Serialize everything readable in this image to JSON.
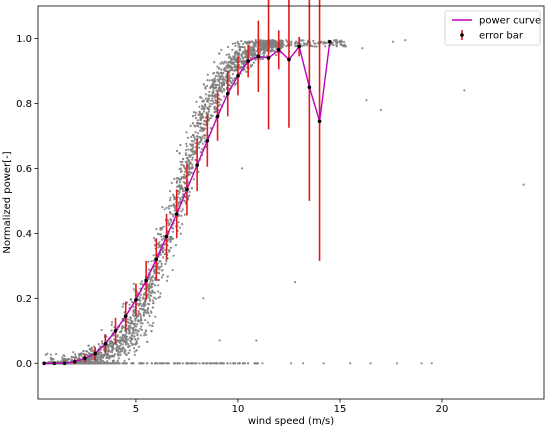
{
  "chart_data": {
    "type": "scatter",
    "title": "",
    "xlabel": "wind speed (m/s)",
    "ylabel": "Normalized power[-]",
    "xlim": [
      0.2,
      25.0
    ],
    "ylim": [
      -0.11,
      1.1
    ],
    "xticks": [
      5,
      10,
      15,
      20
    ],
    "yticks": [
      0.0,
      0.2,
      0.4,
      0.6,
      0.8,
      1.0
    ],
    "xtick_labels": [
      "5",
      "10",
      "15",
      "20"
    ],
    "ytick_labels": [
      "0.0",
      "0.2",
      "0.4",
      "0.6",
      "0.8",
      "1.0"
    ],
    "grid": false,
    "legend_position": "top-right",
    "colors": {
      "scatter": "#808080",
      "power_curve": "#bf00bf",
      "error_bar": "#e31a1c",
      "marker": "#000000"
    },
    "series": [
      {
        "name": "power curve",
        "type": "line",
        "x": [
          0.5,
          1.0,
          1.5,
          2.0,
          2.5,
          3.0,
          3.5,
          4.0,
          4.5,
          5.0,
          5.5,
          6.0,
          6.5,
          7.0,
          7.5,
          8.0,
          8.5,
          9.0,
          9.5,
          10.0,
          10.5,
          11.0,
          11.5,
          12.0,
          12.5,
          13.0,
          13.5,
          14.0,
          14.5
        ],
        "y": [
          0.0,
          0.0,
          0.0,
          0.005,
          0.015,
          0.03,
          0.06,
          0.1,
          0.145,
          0.195,
          0.255,
          0.32,
          0.39,
          0.46,
          0.535,
          0.61,
          0.685,
          0.76,
          0.83,
          0.885,
          0.93,
          0.945,
          0.94,
          0.965,
          0.935,
          0.975,
          0.85,
          0.745,
          0.99
        ]
      },
      {
        "name": "error bar",
        "type": "errorbar",
        "x": [
          0.5,
          1.0,
          1.5,
          2.0,
          2.5,
          3.0,
          3.5,
          4.0,
          4.5,
          5.0,
          5.5,
          6.0,
          6.5,
          7.0,
          7.5,
          8.0,
          8.5,
          9.0,
          9.5,
          10.0,
          10.5,
          11.0,
          11.5,
          12.0,
          12.5,
          13.0,
          13.5,
          14.0,
          14.5
        ],
        "y": [
          0.0,
          0.0,
          0.0,
          0.005,
          0.015,
          0.03,
          0.06,
          0.1,
          0.145,
          0.195,
          0.255,
          0.32,
          0.39,
          0.46,
          0.535,
          0.61,
          0.685,
          0.76,
          0.83,
          0.885,
          0.93,
          0.945,
          0.94,
          0.965,
          0.935,
          0.975,
          0.85,
          0.745,
          0.99
        ],
        "err": [
          0.0,
          0.005,
          0.005,
          0.008,
          0.012,
          0.02,
          0.03,
          0.04,
          0.045,
          0.05,
          0.06,
          0.065,
          0.07,
          0.075,
          0.08,
          0.08,
          0.08,
          0.075,
          0.07,
          0.06,
          0.05,
          0.11,
          0.22,
          0.06,
          0.21,
          0.03,
          0.35,
          0.43,
          0.0
        ]
      }
    ],
    "legend": [
      {
        "label": "power curve",
        "kind": "line"
      },
      {
        "label": "error bar",
        "kind": "errorbar"
      }
    ]
  }
}
